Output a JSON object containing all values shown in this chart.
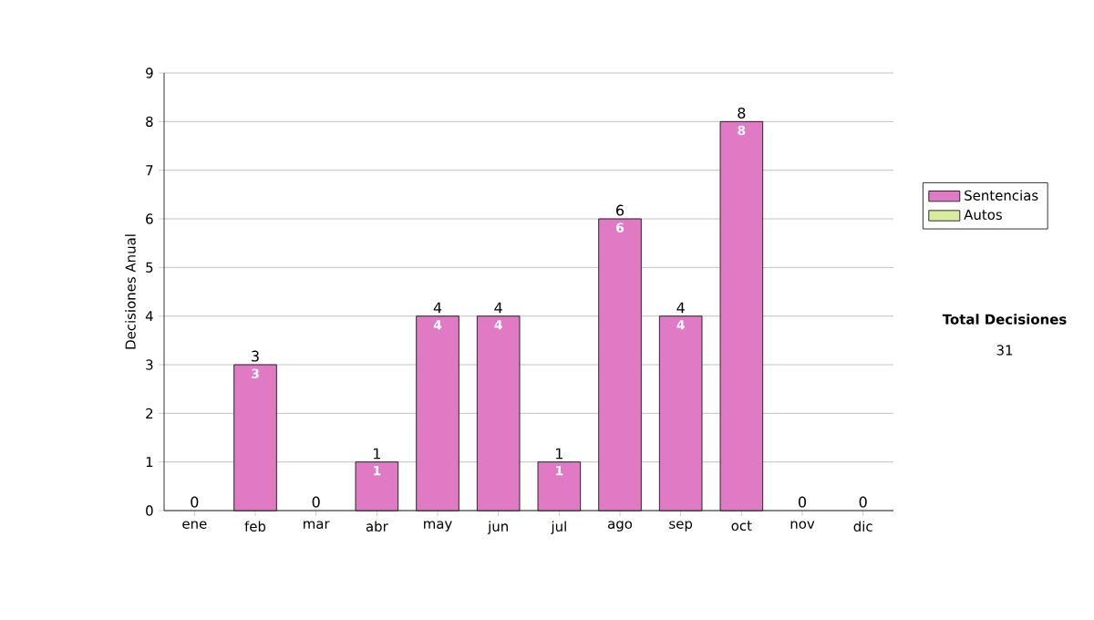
{
  "chart_data": {
    "type": "bar",
    "stacked": true,
    "ylabel": "Decisiones Anual",
    "categories": [
      "ene",
      "feb",
      "mar",
      "abr",
      "may",
      "jun",
      "jul",
      "ago",
      "sep",
      "oct",
      "nov",
      "dic"
    ],
    "series": [
      {
        "name": "Sentencias",
        "color": "#e07ac4",
        "values": [
          0,
          3,
          0,
          1,
          4,
          4,
          1,
          6,
          4,
          8,
          0,
          0
        ],
        "value_labels": [
          null,
          "3",
          null,
          "1",
          "4",
          "4",
          "1",
          "6",
          "4",
          "8",
          null,
          null
        ]
      },
      {
        "name": "Autos",
        "color": "#d8eca0",
        "values": [
          0,
          0,
          0,
          0,
          0,
          0,
          0,
          0,
          0,
          0,
          0,
          0
        ]
      }
    ],
    "totals": [
      "0",
      "3",
      "0",
      "1",
      "4",
      "4",
      "1",
      "6",
      "4",
      "8",
      "0",
      "0"
    ],
    "ylim": [
      0,
      9
    ],
    "yticks": [
      0,
      1,
      2,
      3,
      4,
      5,
      6,
      7,
      8,
      9
    ],
    "grid": "y",
    "legend": "right",
    "annotations": [
      "Total Decisiones",
      "31"
    ]
  }
}
